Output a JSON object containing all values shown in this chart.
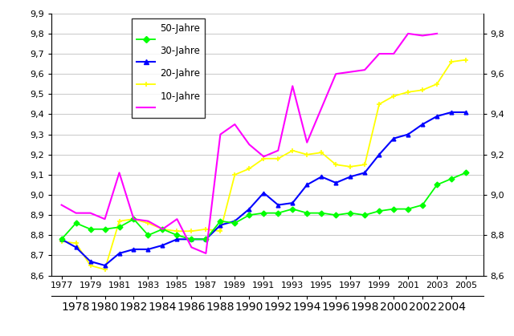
{
  "years": [
    1977,
    1978,
    1979,
    1980,
    1981,
    1982,
    1983,
    1984,
    1985,
    1986,
    1987,
    1988,
    1989,
    1990,
    1991,
    1992,
    1993,
    1994,
    1995,
    1996,
    1997,
    1998,
    1999,
    2000,
    2001,
    2002,
    2003,
    2004,
    2005
  ],
  "line50": [
    8.78,
    8.86,
    8.83,
    8.83,
    8.84,
    8.88,
    8.8,
    8.83,
    8.8,
    8.78,
    8.78,
    8.87,
    8.86,
    8.9,
    8.91,
    8.91,
    8.93,
    8.91,
    8.91,
    8.9,
    8.91,
    8.9,
    8.92,
    8.93,
    8.93,
    8.95,
    9.05,
    9.08,
    9.11
  ],
  "line30": [
    8.78,
    8.74,
    8.67,
    8.65,
    8.71,
    8.73,
    8.73,
    8.75,
    8.78,
    8.78,
    8.78,
    8.85,
    8.87,
    8.93,
    9.01,
    8.95,
    8.96,
    9.05,
    9.09,
    9.06,
    9.09,
    9.11,
    9.2,
    9.28,
    9.3,
    9.35,
    9.39,
    9.41,
    9.41
  ],
  "line20": [
    8.77,
    8.76,
    8.65,
    8.63,
    8.87,
    8.88,
    8.86,
    8.83,
    8.82,
    8.82,
    8.83,
    8.82,
    9.1,
    9.13,
    9.18,
    9.18,
    9.22,
    9.2,
    9.21,
    9.15,
    9.14,
    9.15,
    9.45,
    9.49,
    9.51,
    9.52,
    9.55,
    9.66,
    9.67
  ],
  "line10": [
    8.95,
    8.91,
    8.91,
    8.88,
    9.11,
    8.88,
    8.87,
    8.83,
    8.88,
    8.74,
    8.71,
    9.3,
    9.35,
    9.25,
    9.19,
    9.22,
    9.54,
    9.26,
    9.43,
    9.6,
    9.61,
    9.62,
    9.7,
    9.7,
    9.8,
    9.79,
    9.8
  ],
  "years10": [
    1977,
    1978,
    1979,
    1980,
    1981,
    1982,
    1983,
    1984,
    1985,
    1986,
    1987,
    1988,
    1989,
    1990,
    1991,
    1992,
    1993,
    1994,
    1995,
    1996,
    1997,
    1998,
    1999,
    2000,
    2001,
    2002,
    2003
  ],
  "color50": "#00ff00",
  "color30": "#0000ff",
  "color20": "#ffff00",
  "color10": "#ff00ff",
  "ylim": [
    8.6,
    9.9
  ],
  "yticks_left": [
    8.6,
    8.7,
    8.8,
    8.9,
    9.0,
    9.1,
    9.2,
    9.3,
    9.4,
    9.5,
    9.6,
    9.7,
    9.8,
    9.9
  ],
  "yticks_right": [
    8.6,
    8.8,
    9.0,
    9.2,
    9.4,
    9.6,
    9.8
  ],
  "xtick_odd": [
    1977,
    1979,
    1981,
    1983,
    1985,
    1987,
    1989,
    1991,
    1993,
    1995,
    1997,
    1999,
    2001,
    2003,
    2005
  ],
  "xtick_even": [
    1978,
    1980,
    1982,
    1984,
    1986,
    1988,
    1990,
    1992,
    1994,
    1996,
    1998,
    2000,
    2002,
    2004
  ],
  "legend_labels": [
    "50-Jahre",
    "30-Jahre",
    "20-Jahre",
    "10-Jahre"
  ],
  "background_color": "#ffffff",
  "grid_color": "#c8c8c8"
}
